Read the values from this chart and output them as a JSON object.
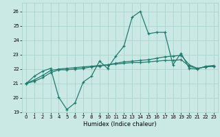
{
  "title": "",
  "xlabel": "Humidex (Indice chaleur)",
  "background_color": "#cbe9e4",
  "grid_color": "#aad4cc",
  "line_color": "#1e7b6e",
  "xlim": [
    -0.5,
    23.5
  ],
  "ylim": [
    19,
    26.6
  ],
  "yticks": [
    19,
    20,
    21,
    22,
    23,
    24,
    25,
    26
  ],
  "xticks": [
    0,
    1,
    2,
    3,
    4,
    5,
    6,
    7,
    8,
    9,
    10,
    11,
    12,
    13,
    14,
    15,
    16,
    17,
    18,
    19,
    20,
    21,
    22,
    23
  ],
  "curve1_x": [
    0,
    1,
    2,
    3,
    4,
    5,
    6,
    7,
    8,
    9,
    10,
    11,
    12,
    13,
    14,
    15,
    16,
    17,
    18,
    19,
    20,
    21,
    22,
    23
  ],
  "curve1_y": [
    21.0,
    21.5,
    21.85,
    22.05,
    20.05,
    19.2,
    19.65,
    21.1,
    21.5,
    22.55,
    22.05,
    22.9,
    23.6,
    25.6,
    26.0,
    24.45,
    24.55,
    24.55,
    22.3,
    23.1,
    22.05,
    22.0,
    22.2,
    22.25
  ],
  "curve2_x": [
    0,
    1,
    2,
    3,
    4,
    5,
    6,
    7,
    8,
    9,
    10,
    11,
    12,
    13,
    14,
    15,
    16,
    17,
    18,
    19,
    20,
    21,
    22,
    23
  ],
  "curve2_y": [
    21.0,
    21.25,
    21.55,
    21.9,
    22.0,
    22.05,
    22.1,
    22.15,
    22.2,
    22.25,
    22.3,
    22.35,
    22.4,
    22.45,
    22.45,
    22.5,
    22.55,
    22.6,
    22.6,
    22.65,
    22.2,
    22.05,
    22.15,
    22.2
  ],
  "curve3_x": [
    0,
    1,
    2,
    3,
    4,
    5,
    6,
    7,
    8,
    9,
    10,
    11,
    12,
    13,
    14,
    15,
    16,
    17,
    18,
    19,
    20,
    21,
    22,
    23
  ],
  "curve3_y": [
    21.0,
    21.15,
    21.4,
    21.75,
    21.95,
    21.95,
    22.0,
    22.05,
    22.15,
    22.2,
    22.3,
    22.4,
    22.5,
    22.55,
    22.6,
    22.65,
    22.75,
    22.85,
    22.9,
    22.95,
    22.3,
    22.05,
    22.15,
    22.2
  ],
  "marker": "+",
  "markersize": 3,
  "linewidth": 0.9,
  "tick_fontsize": 5.0,
  "xlabel_fontsize": 6.0
}
